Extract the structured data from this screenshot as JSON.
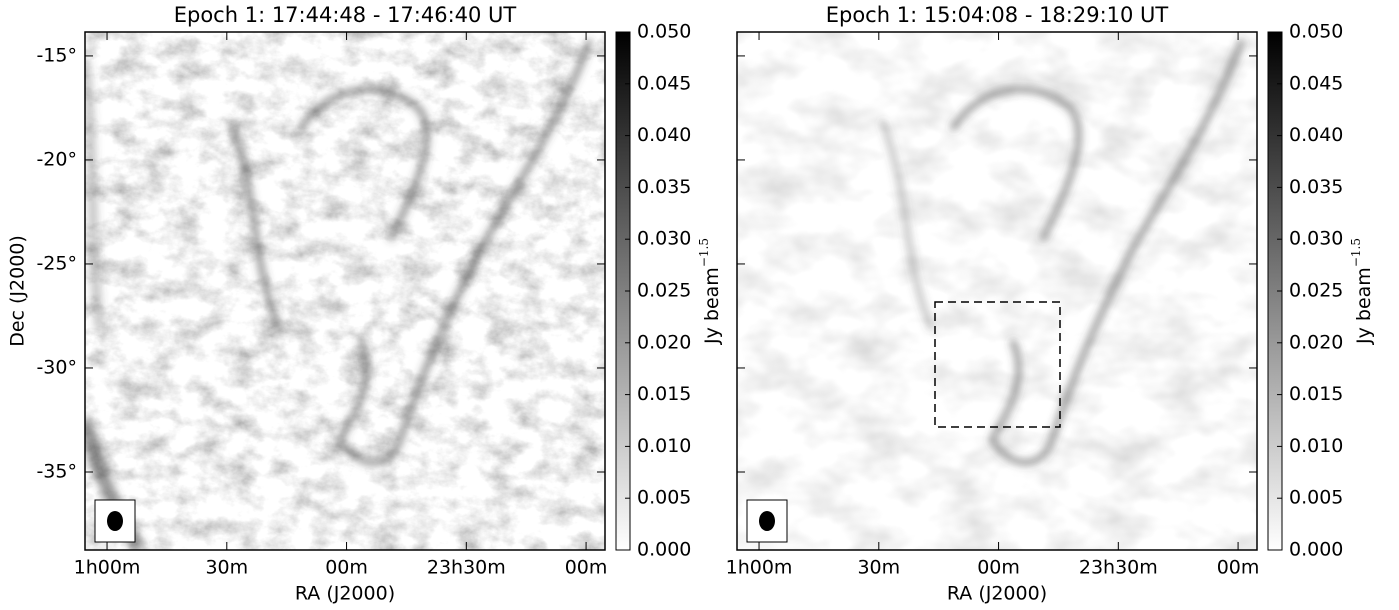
{
  "chart_data": [
    {
      "type": "image",
      "title": "Epoch 1: 17:44:48 - 17:46:40 UT",
      "xlabel": "RA (J2000)",
      "ylabel": "Dec (J2000)",
      "xlim": [
        1.092,
        -1.079
      ],
      "xticks": [
        {
          "value": 1,
          "label": "1h00m"
        },
        {
          "value": 0.5,
          "label": "30m"
        },
        {
          "value": 0,
          "label": "00m"
        },
        {
          "value": -0.5,
          "label": "23h30m"
        },
        {
          "value": -1,
          "label": "00m"
        }
      ],
      "ylim": [
        -38.75,
        -13.85
      ],
      "yticks": [
        {
          "value": -15,
          "label": "-15°"
        },
        {
          "value": -20,
          "label": "-20°"
        },
        {
          "value": -25,
          "label": "-25°"
        },
        {
          "value": -30,
          "label": "-30°"
        },
        {
          "value": -35,
          "label": "-35°"
        }
      ],
      "colorbar_label": "Jy beam",
      "colorbar_label_sup": "−1.5",
      "colormap": [
        "#ffffff",
        "#000000"
      ],
      "clim": [
        0,
        0.05
      ],
      "cticks": [
        {
          "value": 0,
          "label": "0.000"
        },
        {
          "value": 0.005,
          "label": "0.005"
        },
        {
          "value": 0.01,
          "label": "0.010"
        },
        {
          "value": 0.015,
          "label": "0.015"
        },
        {
          "value": 0.02,
          "label": "0.020"
        },
        {
          "value": 0.025,
          "label": "0.025"
        },
        {
          "value": 0.03,
          "label": "0.030"
        },
        {
          "value": 0.035,
          "label": "0.035"
        },
        {
          "value": 0.04,
          "label": "0.040"
        },
        {
          "value": 0.045,
          "label": "0.045"
        },
        {
          "value": 0.05,
          "label": "0.050"
        }
      ]
    },
    {
      "type": "image",
      "title": "Epoch 1: 15:04:08 - 18:29:10 UT",
      "xlabel": "RA (J2000)",
      "xlim": [
        1.092,
        -1.079
      ],
      "xticks": [
        {
          "value": 1,
          "label": "1h00m"
        },
        {
          "value": 0.5,
          "label": "30m"
        },
        {
          "value": 0,
          "label": "00m"
        },
        {
          "value": -0.5,
          "label": "23h30m"
        },
        {
          "value": -1,
          "label": "00m"
        }
      ],
      "ylim": [
        -38.75,
        -13.85
      ],
      "yticks": [
        {
          "value": -15
        },
        {
          "value": -20
        },
        {
          "value": -25
        },
        {
          "value": -30
        },
        {
          "value": -35
        }
      ],
      "colorbar_label": "Jy beam",
      "colorbar_label_sup": "−1.5",
      "colormap": [
        "#ffffff",
        "#000000"
      ],
      "clim": [
        0,
        0.05
      ],
      "cticks": [
        {
          "value": 0,
          "label": "0.000"
        },
        {
          "value": 0.005,
          "label": "0.005"
        },
        {
          "value": 0.01,
          "label": "0.010"
        },
        {
          "value": 0.015,
          "label": "0.015"
        },
        {
          "value": 0.02,
          "label": "0.020"
        },
        {
          "value": 0.025,
          "label": "0.025"
        },
        {
          "value": 0.03,
          "label": "0.030"
        },
        {
          "value": 0.035,
          "label": "0.035"
        },
        {
          "value": 0.04,
          "label": "0.040"
        },
        {
          "value": 0.045,
          "label": "0.045"
        },
        {
          "value": 0.05,
          "label": "0.050"
        }
      ]
    }
  ]
}
